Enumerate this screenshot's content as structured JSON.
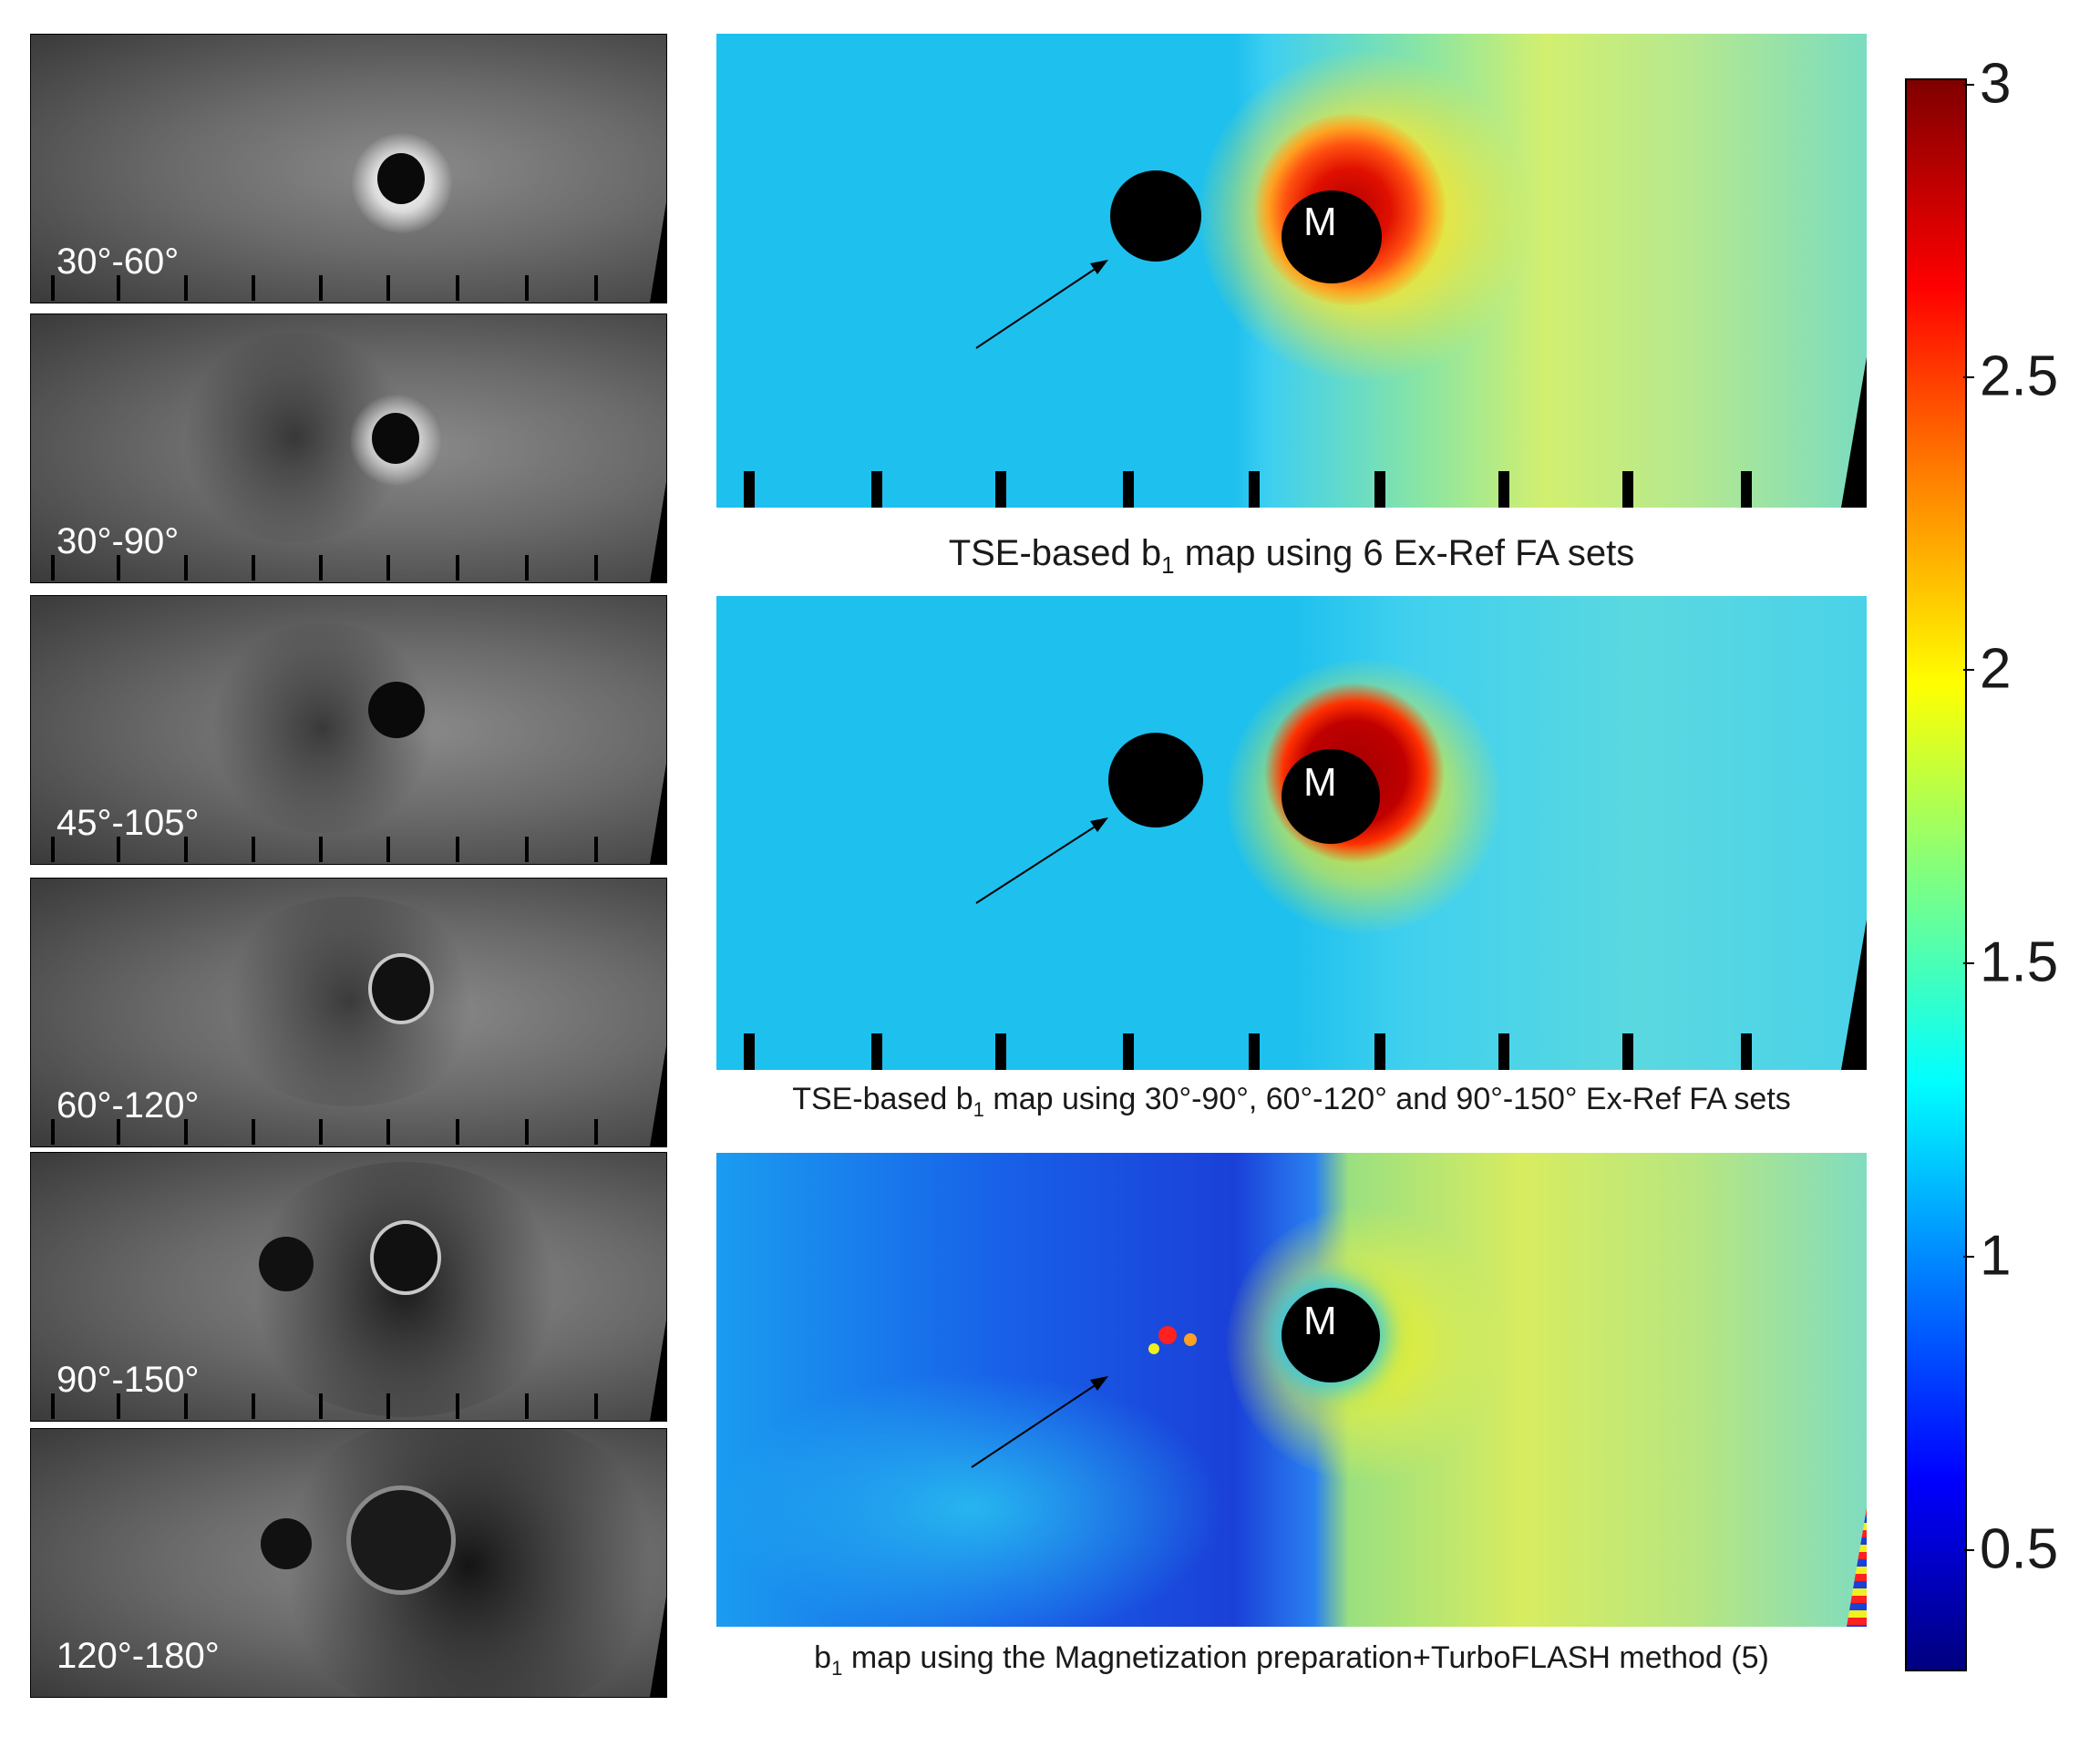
{
  "panels_left": [
    {
      "label": "30°-60°"
    },
    {
      "label": "30°-90°"
    },
    {
      "label": "45°-105°"
    },
    {
      "label": "60°-120°"
    },
    {
      "label": "90°-150°"
    },
    {
      "label": "120°-180°"
    }
  ],
  "maps": [
    {
      "marker": "M",
      "caption_pre": "TSE-based b",
      "caption_sub": "1",
      "caption_post": " map using 6 Ex-Ref FA sets"
    },
    {
      "marker": "M",
      "caption_pre": "TSE-based b",
      "caption_sub": "1",
      "caption_post": " map using 30°-90°, 60°-120° and 90°-150° Ex-Ref FA sets"
    },
    {
      "marker": "M",
      "caption_pre": "b",
      "caption_sub": "1",
      "caption_post": " map using the Magnetization preparation+TurboFLASH method (5)"
    }
  ],
  "colorbar": {
    "ticks": [
      "3",
      "2.5",
      "2",
      "1.5",
      "1",
      "0.5"
    ],
    "range": [
      0.3,
      3
    ],
    "colormap": "jet",
    "colors": [
      "#00007f",
      "#0000ff",
      "#0080ff",
      "#00ffff",
      "#80ff80",
      "#ffff00",
      "#ff8000",
      "#ff0000",
      "#7f0000"
    ]
  }
}
